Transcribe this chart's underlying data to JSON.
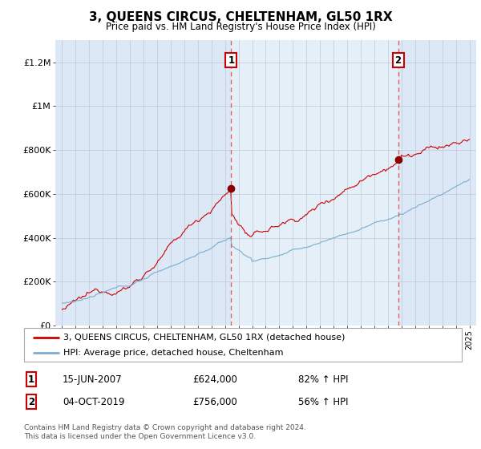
{
  "title": "3, QUEENS CIRCUS, CHELTENHAM, GL50 1RX",
  "subtitle": "Price paid vs. HM Land Registry's House Price Index (HPI)",
  "ylabel_ticks": [
    "£0",
    "£200K",
    "£400K",
    "£600K",
    "£800K",
    "£1M",
    "£1.2M"
  ],
  "ytick_values": [
    0,
    200000,
    400000,
    600000,
    800000,
    1000000,
    1200000
  ],
  "ylim": [
    0,
    1300000
  ],
  "xlim_start": 1994.5,
  "xlim_end": 2025.5,
  "sale1_x": 2007.45,
  "sale1_price": 624000,
  "sale2_x": 2019.75,
  "sale2_price": 756000,
  "legend_line1": "3, QUEENS CIRCUS, CHELTENHAM, GL50 1RX (detached house)",
  "legend_line2": "HPI: Average price, detached house, Cheltenham",
  "table_row1": [
    "1",
    "15-JUN-2007",
    "£624,000",
    "82% ↑ HPI"
  ],
  "table_row2": [
    "2",
    "04-OCT-2019",
    "£756,000",
    "56% ↑ HPI"
  ],
  "footer": "Contains HM Land Registry data © Crown copyright and database right 2024.\nThis data is licensed under the Open Government Licence v3.0.",
  "line_color_red": "#cc0000",
  "line_color_blue": "#7aadcf",
  "vline_color": "#e06060",
  "shade_color": "#dce8f5",
  "bg_color": "#dce8f5",
  "grid_color": "#c0c8d8",
  "dot_color": "#8b0000"
}
